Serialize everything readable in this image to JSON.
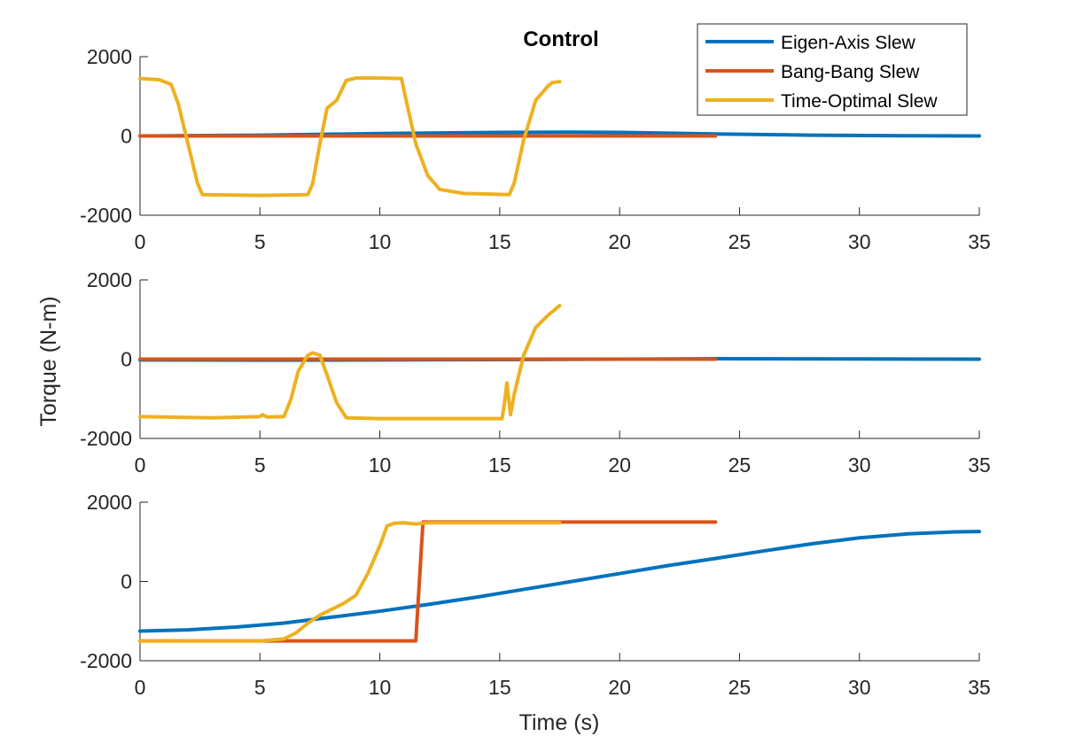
{
  "figure": {
    "title": "Control",
    "xlabel": "Time (s)",
    "ylabel": "Torque (N-m)",
    "legend": {
      "placement": "top-right",
      "entries": [
        "Eigen-Axis Slew",
        "Bang-Bang Slew",
        "Time-Optimal Slew"
      ]
    },
    "colors": {
      "Eigen-Axis Slew": "#0072BD",
      "Bang-Bang Slew": "#D95319",
      "Time-Optimal Slew": "#EDB120"
    }
  },
  "chart_data": [
    {
      "type": "line",
      "title": "Control",
      "xlabel": "",
      "ylabel": "",
      "xlim": [
        0,
        35
      ],
      "ylim": [
        -2000,
        2000
      ],
      "xticks": [
        0,
        5,
        10,
        15,
        20,
        25,
        30,
        35
      ],
      "yticks": [
        -2000,
        0,
        2000
      ],
      "grid": false,
      "series": [
        {
          "name": "Eigen-Axis Slew",
          "x": [
            0,
            5,
            10,
            15,
            18,
            20,
            24,
            28,
            32,
            35
          ],
          "y": [
            0,
            20,
            60,
            90,
            95,
            90,
            50,
            20,
            5,
            0
          ]
        },
        {
          "name": "Bang-Bang Slew",
          "x": [
            0,
            5,
            10,
            15,
            20,
            24
          ],
          "y": [
            0,
            0,
            0,
            0,
            0,
            0
          ]
        },
        {
          "name": "Time-Optimal Slew",
          "x": [
            0,
            0.8,
            1.3,
            1.6,
            2.0,
            2.4,
            2.6,
            5,
            7,
            7.2,
            7.5,
            7.8,
            8.2,
            8.6,
            9,
            10,
            10.9,
            11.1,
            11.5,
            12,
            12.5,
            13.5,
            15.4,
            15.6,
            16,
            16.5,
            17,
            17.2,
            17.5
          ],
          "y": [
            1450,
            1420,
            1300,
            800,
            -200,
            -1200,
            -1480,
            -1500,
            -1480,
            -1200,
            -200,
            700,
            900,
            1400,
            1460,
            1460,
            1450,
            900,
            -200,
            -1000,
            -1350,
            -1450,
            -1480,
            -1200,
            -100,
            900,
            1250,
            1350,
            1370
          ]
        }
      ]
    },
    {
      "type": "line",
      "xlabel": "",
      "ylabel": "Torque (N-m)",
      "xlim": [
        0,
        35
      ],
      "ylim": [
        -2000,
        2000
      ],
      "xticks": [
        0,
        5,
        10,
        15,
        20,
        25,
        30,
        35
      ],
      "yticks": [
        -2000,
        0,
        2000
      ],
      "grid": false,
      "series": [
        {
          "name": "Eigen-Axis Slew",
          "x": [
            0,
            5,
            10,
            15,
            20,
            24,
            30,
            35
          ],
          "y": [
            -20,
            -25,
            -20,
            -10,
            0,
            10,
            5,
            0
          ]
        },
        {
          "name": "Bang-Bang Slew",
          "x": [
            0,
            5,
            10,
            15,
            20,
            24
          ],
          "y": [
            0,
            0,
            0,
            0,
            0,
            0
          ]
        },
        {
          "name": "Time-Optimal Slew",
          "x": [
            0,
            3,
            5,
            5.1,
            5.3,
            6,
            6.3,
            6.6,
            7,
            7.2,
            7.5,
            7.8,
            8.2,
            8.6,
            10,
            12,
            15.1,
            15.2,
            15.3,
            15.45,
            15.6,
            16,
            16.5,
            17,
            17.5
          ],
          "y": [
            -1450,
            -1480,
            -1450,
            -1400,
            -1460,
            -1450,
            -1000,
            -300,
            100,
            160,
            100,
            -400,
            -1100,
            -1480,
            -1500,
            -1500,
            -1500,
            -1100,
            -600,
            -1400,
            -900,
            100,
            800,
            1100,
            1350
          ]
        }
      ]
    },
    {
      "type": "line",
      "xlabel": "Time (s)",
      "ylabel": "",
      "xlim": [
        0,
        35
      ],
      "ylim": [
        -2000,
        2000
      ],
      "xticks": [
        0,
        5,
        10,
        15,
        20,
        25,
        30,
        35
      ],
      "yticks": [
        -2000,
        0,
        2000
      ],
      "grid": false,
      "series": [
        {
          "name": "Eigen-Axis Slew",
          "x": [
            0,
            2,
            4,
            6,
            8,
            10,
            12,
            14,
            16,
            18,
            20,
            22,
            24,
            26,
            28,
            30,
            32,
            34,
            35
          ],
          "y": [
            -1250,
            -1220,
            -1150,
            -1050,
            -900,
            -750,
            -580,
            -400,
            -200,
            0,
            200,
            400,
            580,
            770,
            950,
            1100,
            1200,
            1250,
            1260
          ]
        },
        {
          "name": "Bang-Bang Slew",
          "x": [
            0,
            5,
            11.5,
            11.8,
            15,
            20,
            24
          ],
          "y": [
            -1500,
            -1500,
            -1500,
            1500,
            1500,
            1500,
            1500
          ]
        },
        {
          "name": "Time-Optimal Slew",
          "x": [
            0,
            5,
            6,
            6.5,
            7,
            7.5,
            8,
            8.5,
            9,
            9.5,
            10,
            10.3,
            10.6,
            11,
            11.5,
            12,
            15,
            17.5
          ],
          "y": [
            -1500,
            -1500,
            -1450,
            -1300,
            -1050,
            -850,
            -700,
            -550,
            -350,
            200,
            900,
            1400,
            1470,
            1480,
            1450,
            1480,
            1480,
            1480
          ]
        }
      ]
    }
  ]
}
